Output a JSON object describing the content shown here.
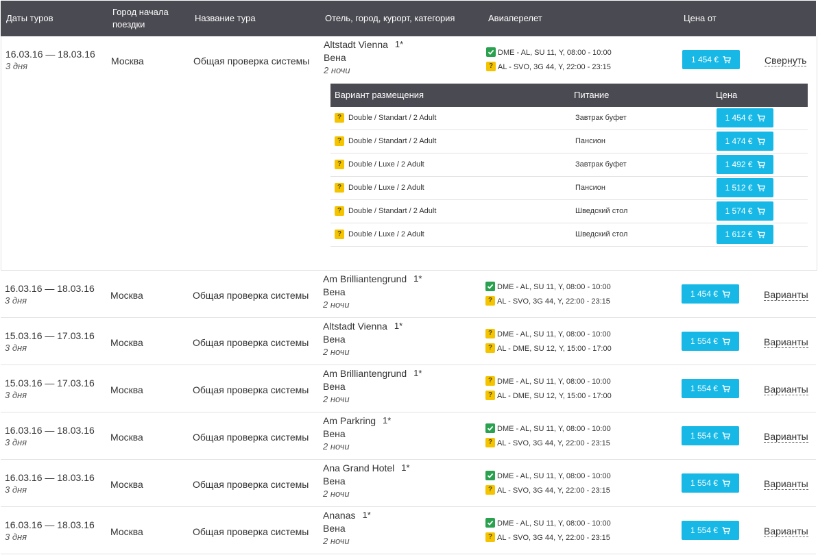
{
  "header": {
    "dates": "Даты туров",
    "start_city": "Город начала поездки",
    "tour_name": "Название тура",
    "hotel": "Отель, город, курорт, категория",
    "flight": "Авиаперелет",
    "price_from": "Цена от"
  },
  "colors": {
    "header_bg": "#4a4a52",
    "price_button": "#17b8e6",
    "badge_ok": "#2aa14f",
    "badge_question": "#f5c400"
  },
  "icons": {
    "confirmed": "check-icon",
    "unconfirmed": "question-icon",
    "cart": "cart-icon"
  },
  "expanded": {
    "columns": {
      "room": "Вариант размещения",
      "meal": "Питание",
      "price": "Цена"
    },
    "options": [
      {
        "room": "Double / Standart / 2 Adult",
        "meal": "Завтрак буфет",
        "price": "1 454 €"
      },
      {
        "room": "Double / Standart / 2 Adult",
        "meal": "Пансион",
        "price": "1 474 €"
      },
      {
        "room": "Double / Luxe / 2 Adult",
        "meal": "Завтрак буфет",
        "price": "1 492 €"
      },
      {
        "room": "Double / Luxe / 2 Adult",
        "meal": "Пансион",
        "price": "1 512 €"
      },
      {
        "room": "Double / Standart / 2 Adult",
        "meal": "Шведский стол",
        "price": "1 574 €"
      },
      {
        "room": "Double / Luxe / 2 Adult",
        "meal": "Шведский стол",
        "price": "1 612 €"
      }
    ]
  },
  "rows": [
    {
      "dates": "16.03.16 — 18.03.16",
      "days": "3 дня",
      "city": "Москва",
      "tour": "Общая проверка системы",
      "hotel": "Altstadt Vienna",
      "stars": "1*",
      "hotel_city": "Вена",
      "nights": "2 ночи",
      "flight1": "DME - AL, SU 11, Y, 08:00 - 10:00",
      "flight1_status": "ok",
      "flight2": "AL - SVO, 3G 44, Y, 22:00 - 23:15",
      "flight2_status": "q",
      "price": "1 454 €",
      "action": "Свернуть"
    },
    {
      "dates": "16.03.16 — 18.03.16",
      "days": "3 дня",
      "city": "Москва",
      "tour": "Общая проверка системы",
      "hotel": "Am Brilliantengrund",
      "stars": "1*",
      "hotel_city": "Вена",
      "nights": "2 ночи",
      "flight1": "DME - AL, SU 11, Y, 08:00 - 10:00",
      "flight1_status": "ok",
      "flight2": "AL - SVO, 3G 44, Y, 22:00 - 23:15",
      "flight2_status": "q",
      "price": "1 454 €",
      "action": "Варианты"
    },
    {
      "dates": "15.03.16 — 17.03.16",
      "days": "3 дня",
      "city": "Москва",
      "tour": "Общая проверка системы",
      "hotel": "Altstadt Vienna",
      "stars": "1*",
      "hotel_city": "Вена",
      "nights": "2 ночи",
      "flight1": "DME - AL, SU 11, Y, 08:00 - 10:00",
      "flight1_status": "q",
      "flight2": "AL - DME, SU 12, Y, 15:00 - 17:00",
      "flight2_status": "q",
      "price": "1 554 €",
      "action": "Варианты"
    },
    {
      "dates": "15.03.16 — 17.03.16",
      "days": "3 дня",
      "city": "Москва",
      "tour": "Общая проверка системы",
      "hotel": "Am Brilliantengrund",
      "stars": "1*",
      "hotel_city": "Вена",
      "nights": "2 ночи",
      "flight1": "DME - AL, SU 11, Y, 08:00 - 10:00",
      "flight1_status": "q",
      "flight2": "AL - DME, SU 12, Y, 15:00 - 17:00",
      "flight2_status": "q",
      "price": "1 554 €",
      "action": "Варианты"
    },
    {
      "dates": "16.03.16 — 18.03.16",
      "days": "3 дня",
      "city": "Москва",
      "tour": "Общая проверка системы",
      "hotel": "Am Parkring",
      "stars": "1*",
      "hotel_city": "Вена",
      "nights": "2 ночи",
      "flight1": "DME - AL, SU 11, Y, 08:00 - 10:00",
      "flight1_status": "ok",
      "flight2": "AL - SVO, 3G 44, Y, 22:00 - 23:15",
      "flight2_status": "q",
      "price": "1 554 €",
      "action": "Варианты"
    },
    {
      "dates": "16.03.16 — 18.03.16",
      "days": "3 дня",
      "city": "Москва",
      "tour": "Общая проверка системы",
      "hotel": "Ana Grand Hotel",
      "stars": "1*",
      "hotel_city": "Вена",
      "nights": "2 ночи",
      "flight1": "DME - AL, SU 11, Y, 08:00 - 10:00",
      "flight1_status": "ok",
      "flight2": "AL - SVO, 3G 44, Y, 22:00 - 23:15",
      "flight2_status": "q",
      "price": "1 554 €",
      "action": "Варианты"
    },
    {
      "dates": "16.03.16 — 18.03.16",
      "days": "3 дня",
      "city": "Москва",
      "tour": "Общая проверка системы",
      "hotel": "Ananas",
      "stars": "1*",
      "hotel_city": "Вена",
      "nights": "2 ночи",
      "flight1": "DME - AL, SU 11, Y, 08:00 - 10:00",
      "flight1_status": "ok",
      "flight2": "AL - SVO, 3G 44, Y, 22:00 - 23:15",
      "flight2_status": "q",
      "price": "1 554 €",
      "action": "Варианты"
    }
  ]
}
